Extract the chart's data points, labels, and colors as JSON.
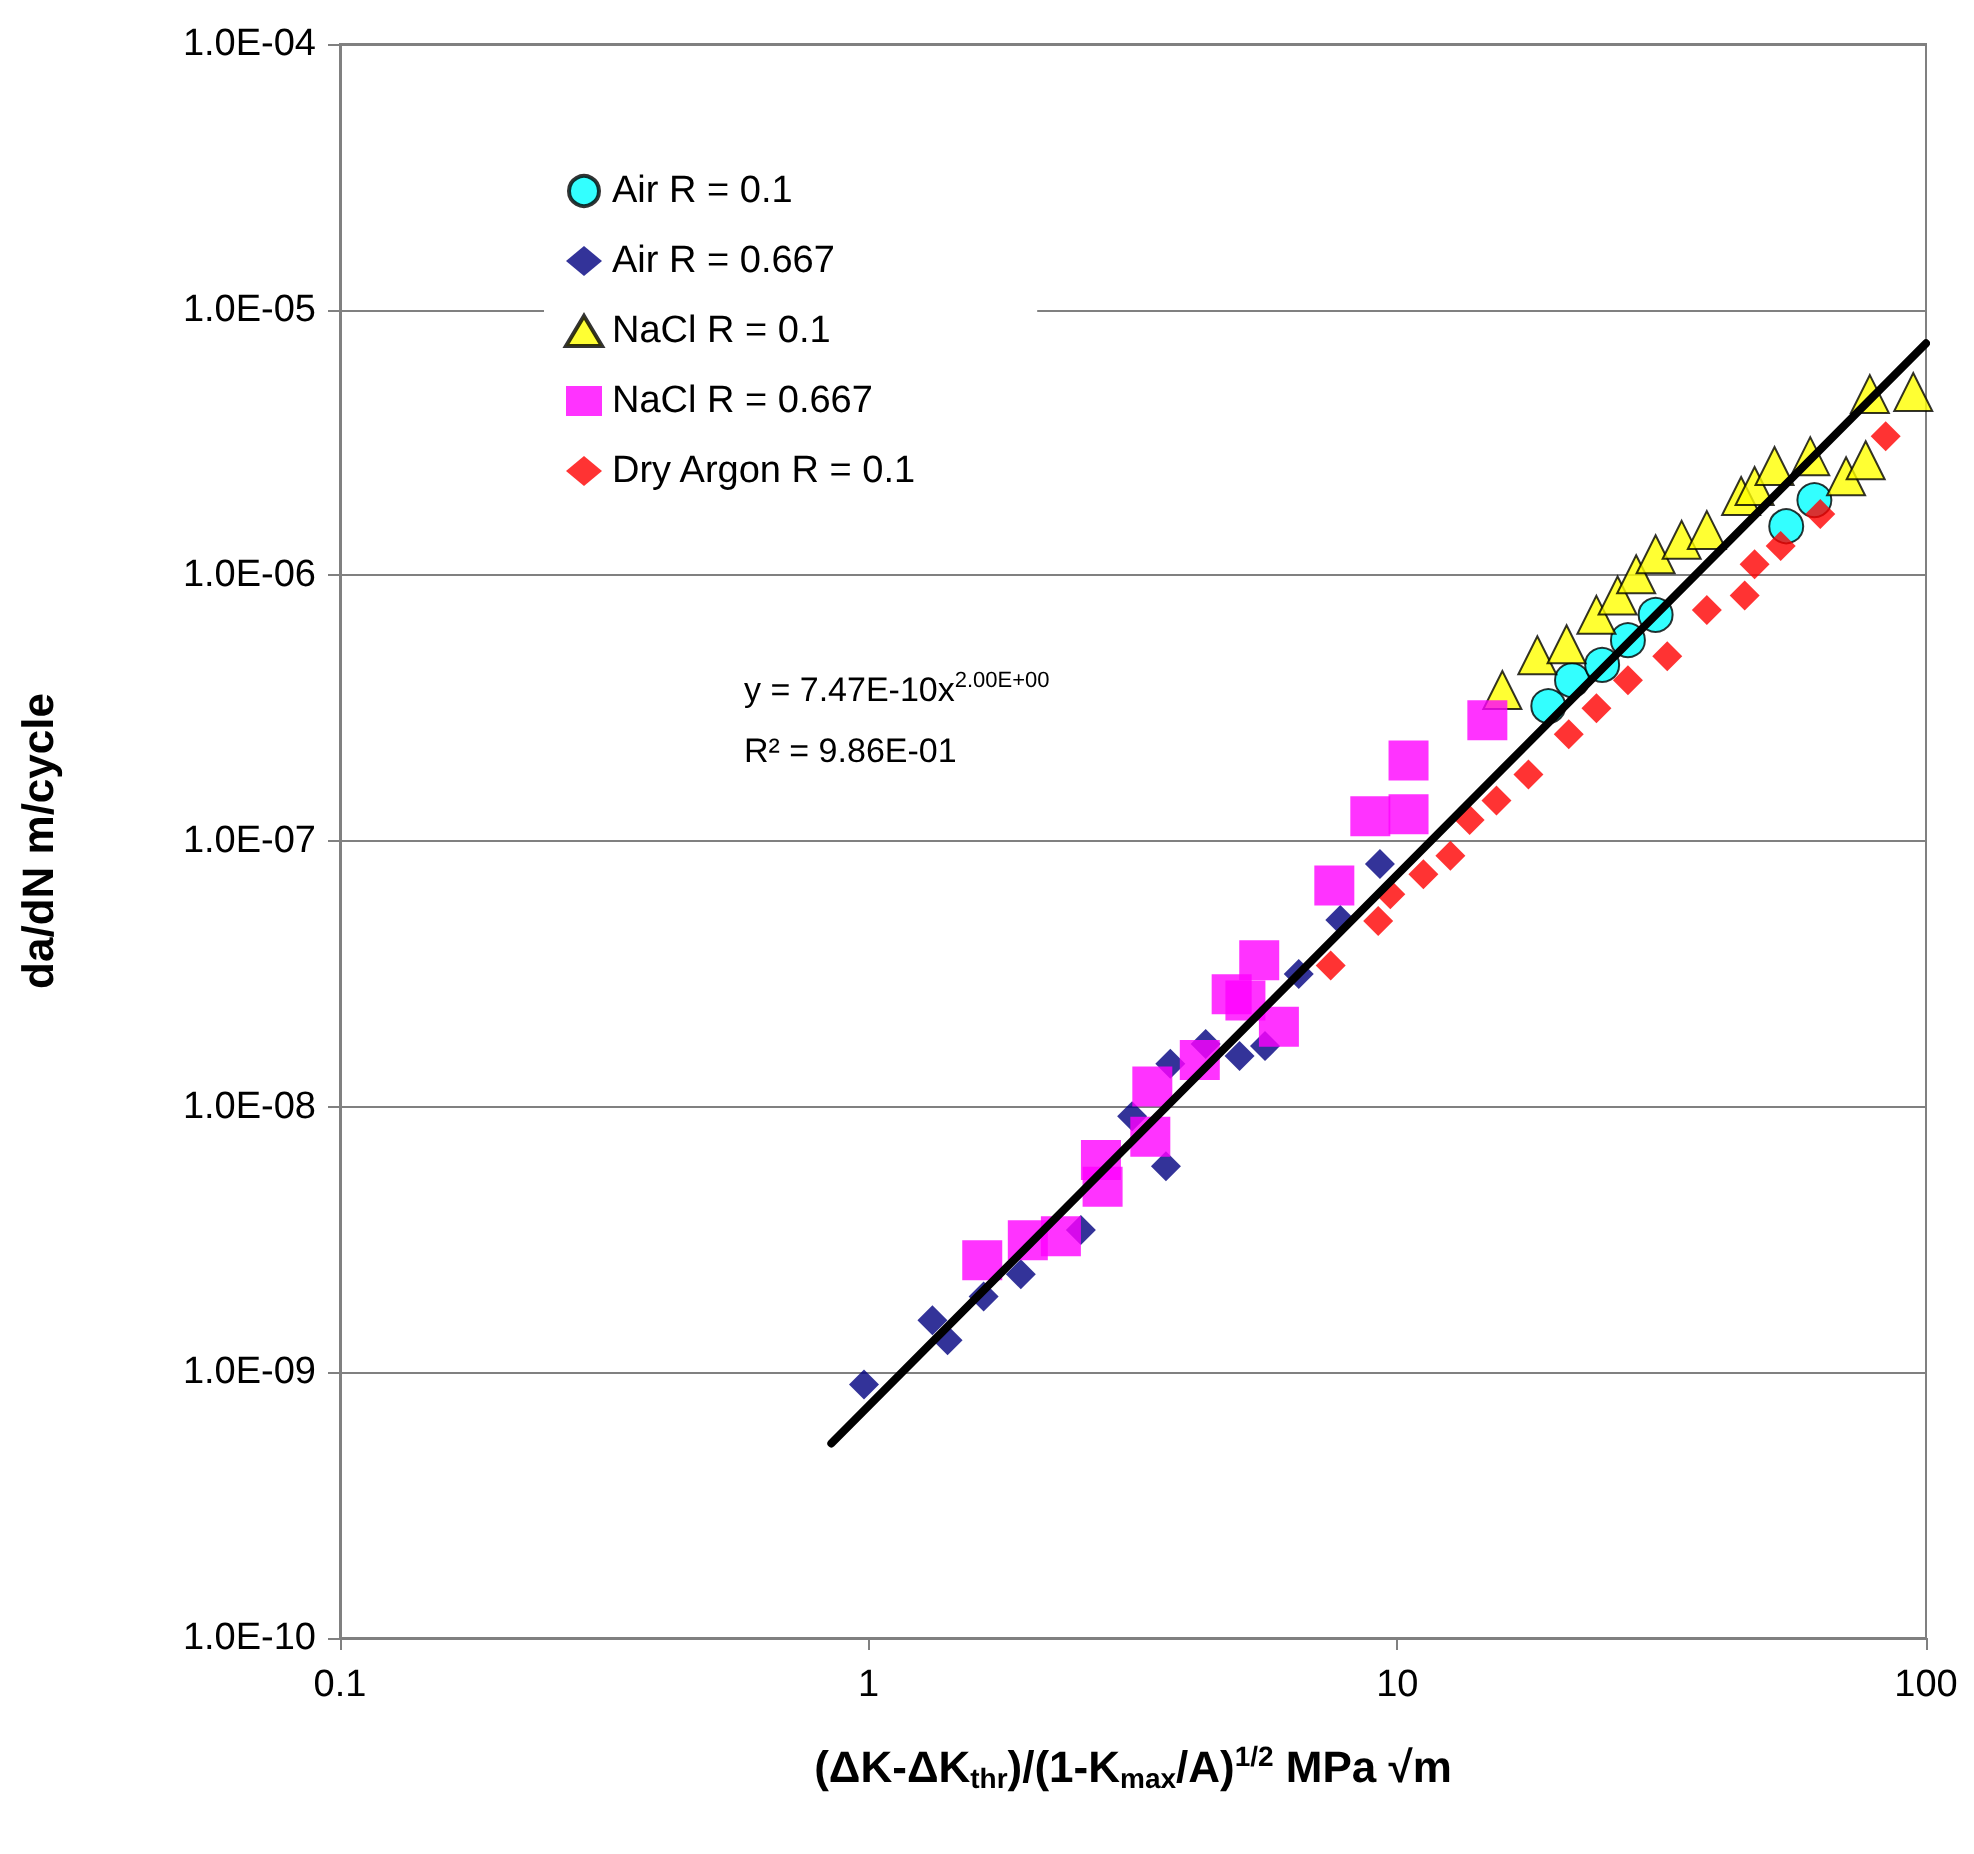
{
  "chart_data": {
    "type": "scatter",
    "xlabel": "(ΔK-ΔK$_{thr}$)/(1-K$_{max}$/A)$^{1/2}$ MPa √m",
    "ylabel": "da/dN m/cycle",
    "log": "xy",
    "grid": "y",
    "legend": "top left",
    "xlim": [
      0.1,
      100
    ],
    "xticks": [
      0.1,
      1,
      10,
      100
    ],
    "ylim": [
      1e-10,
      0.0001
    ],
    "yticks": [
      {
        "value": 1e-10,
        "label": "1.0E-10"
      },
      {
        "value": 1e-09,
        "label": "1.0E-09"
      },
      {
        "value": 1e-08,
        "label": "1.0E-08"
      },
      {
        "value": 1e-07,
        "label": "1.0E-07"
      },
      {
        "value": 1e-06,
        "label": "1.0E-06"
      },
      {
        "value": 1e-05,
        "label": "1.0E-05"
      },
      {
        "value": 0.0001,
        "label": "1.0E-04"
      }
    ],
    "annotations": [
      "y = 7.47E-10x$^{2.00E+00}$",
      "R² = 9.86E-01"
    ],
    "series": [
      {
        "name": "Air R = 0.1",
        "color": "#00ffff",
        "marker": "circle",
        "x": [
          19.3,
          21.4,
          24.4,
          27.3,
          30.8,
          54.4,
          61.5
        ],
        "values": [
          3.22e-07,
          4.03e-07,
          4.6e-07,
          5.7e-07,
          7.1e-07,
          1.53e-06,
          1.92e-06
        ]
      },
      {
        "name": "Air R = 0.667",
        "color": "#000080",
        "marker": "diamond",
        "x": [
          0.98,
          1.32,
          1.41,
          1.65,
          1.94,
          2.52,
          3.15,
          3.65,
          3.72,
          4.34,
          5.03,
          5.62,
          6.51,
          7.8,
          9.27
        ],
        "values": [
          9e-10,
          1.57e-09,
          1.32e-09,
          1.93e-09,
          2.34e-09,
          3.43e-09,
          9.2e-09,
          5.97e-09,
          1.45e-08,
          1.72e-08,
          1.55e-08,
          1.69e-08,
          3.16e-08,
          5.04e-08,
          8.2e-08
        ]
      },
      {
        "name": "NaCl R = 0.1",
        "color": "#ffff00",
        "marker": "triangle",
        "x": [
          15.8,
          18.4,
          20.9,
          23.8,
          26.1,
          28.3,
          30.8,
          34.5,
          38.5,
          44.7,
          47.4,
          51.7,
          60.4,
          70.6,
          76.9,
          78.3,
          94.6
        ],
        "values": [
          3.7e-07,
          5e-07,
          5.5e-07,
          7.1e-07,
          8.4e-07,
          1.01e-06,
          1.2e-06,
          1.36e-06,
          1.48e-06,
          1.99e-06,
          2.17e-06,
          2.58e-06,
          2.81e-06,
          2.36e-06,
          2.71e-06,
          4.81e-06,
          4.9e-06
        ]
      },
      {
        "name": "NaCl R = 0.667",
        "color": "#ff00ff",
        "marker": "square",
        "x": [
          1.64,
          2.0,
          2.31,
          2.75,
          2.77,
          3.41,
          3.44,
          4.23,
          4.86,
          5.16,
          5.48,
          5.97,
          7.6,
          8.89,
          10.5,
          10.5,
          14.8
        ],
        "values": [
          2.64e-09,
          3.14e-09,
          3.25e-09,
          6.3e-09,
          5e-09,
          7.7e-09,
          1.19e-08,
          1.5e-08,
          2.65e-08,
          2.51e-08,
          3.56e-08,
          2e-08,
          6.8e-08,
          1.24e-07,
          2.01e-07,
          1.26e-07,
          2.85e-07
        ]
      },
      {
        "name": "Dry Argon R = 0.1",
        "color": "#ff0000",
        "marker": "diamond",
        "x": [
          7.48,
          9.2,
          9.7,
          11.2,
          12.6,
          13.7,
          15.4,
          17.7,
          21.1,
          23.8,
          27.3,
          32.4,
          38.5,
          45.4,
          47.4,
          53.1,
          63.1,
          83.9
        ],
        "values": [
          3.4e-08,
          5e-08,
          6.3e-08,
          7.5e-08,
          8.8e-08,
          1.2e-07,
          1.42e-07,
          1.78e-07,
          2.52e-07,
          3.16e-07,
          4.03e-07,
          4.96e-07,
          7.4e-07,
          8.4e-07,
          1.1e-06,
          1.29e-06,
          1.7e-06,
          3.34e-06
        ]
      },
      {
        "type": "line",
        "color": "#000000",
        "marker": "none",
        "line_style": "solid",
        "x": [
          0.85,
          100
        ],
        "values": [
          5.4e-10,
          7.47e-06
        ]
      }
    ]
  }
}
